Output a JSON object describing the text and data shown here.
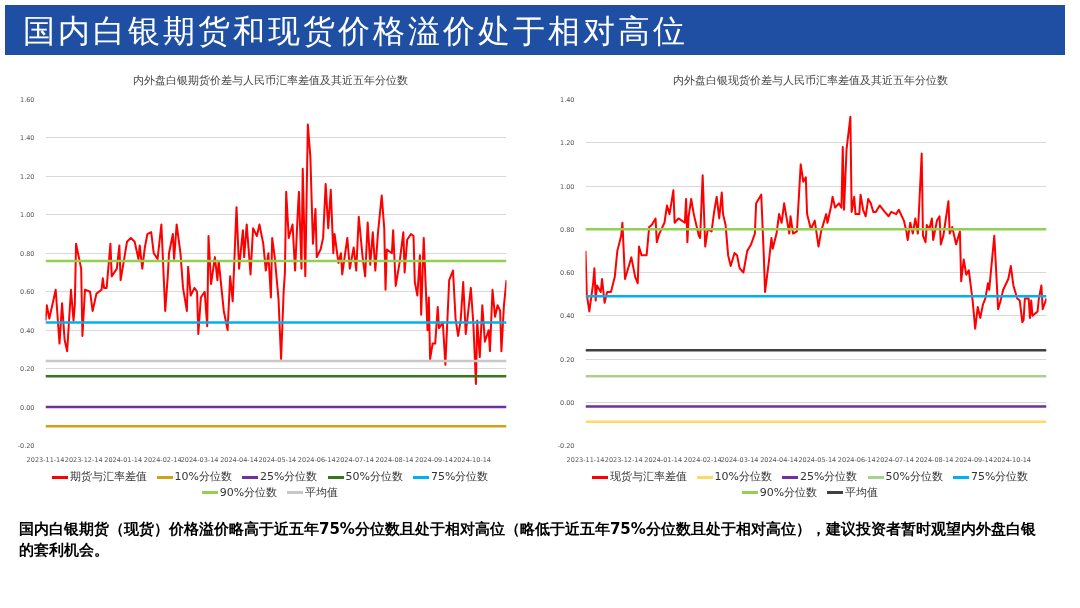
{
  "chart_data": [
    {
      "type": "other",
      "title": "国内白银期货和现货价格溢价处于相对高位",
      "annotations": [
        "国内白银期货（现货）价格溢价略高于近五年75%分位数且处于相对高位（略低于近五年75%分位数且处于相对高位），建议投资者暂时观望内外盘白银的套利机会。"
      ]
    },
    {
      "type": "line",
      "title": "内外盘白银期货价差与人民币汇率差值及其近五年分位数",
      "grid": "y",
      "legend": "bottom",
      "line_style": "solid",
      "xlim": [
        "2023-11-14",
        "2024-11-10"
      ],
      "xticks": [
        "2023-11-14",
        "2023-12-14",
        "2024-01-14",
        "2024-02-14",
        "2024-03-14",
        "2024-04-14",
        "2024-05-14",
        "2024-06-14",
        "2024-07-14",
        "2024-08-14",
        "2024-09-14",
        "2024-10-14"
      ],
      "ylim": [
        -0.2,
        1.6
      ],
      "yticks": [
        {
          "value": -0.2,
          "label": "-0.20"
        },
        {
          "value": 0,
          "label": "0.00"
        },
        {
          "value": 0.2,
          "label": "0.20"
        },
        {
          "value": 0.4,
          "label": "0.40"
        },
        {
          "value": 0.6,
          "label": "0.60"
        },
        {
          "value": 0.8,
          "label": "0.80"
        },
        {
          "value": 1.0,
          "label": "1.00"
        },
        {
          "value": 1.2,
          "label": "1.20"
        },
        {
          "value": 1.4,
          "label": "1.40"
        },
        {
          "value": 1.6,
          "label": "1.60"
        }
      ],
      "series": [
        {
          "name": "期货与汇率差值",
          "color": "#ff0000",
          "x": [
            "2023-11-14",
            "2023-11-15",
            "2023-11-17",
            "2023-11-20",
            "2023-11-22",
            "2023-11-25",
            "2023-11-27",
            "2023-11-29",
            "2023-12-01",
            "2023-12-04",
            "2023-12-06",
            "2023-12-07",
            "2023-12-08",
            "2023-12-12",
            "2023-12-13",
            "2023-12-15",
            "2023-12-19",
            "2023-12-21",
            "2023-12-24",
            "2023-12-28",
            "2023-12-29",
            "2023-12-30",
            "2024-01-01",
            "2024-01-04",
            "2024-01-05",
            "2024-01-09",
            "2024-01-11",
            "2024-01-12",
            "2024-01-15",
            "2024-01-17",
            "2024-01-20",
            "2024-01-23",
            "2024-01-26",
            "2024-01-27",
            "2024-01-29",
            "2024-01-31",
            "2024-02-02",
            "2024-02-05",
            "2024-02-07",
            "2024-02-10",
            "2024-02-13",
            "2024-02-16",
            "2024-02-18",
            "2024-02-19",
            "2024-02-22",
            "2024-02-23",
            "2024-02-25",
            "2024-02-28",
            "2024-03-01",
            "2024-03-04",
            "2024-03-05",
            "2024-03-07",
            "2024-03-10",
            "2024-03-12",
            "2024-03-13",
            "2024-03-15",
            "2024-03-18",
            "2024-03-20",
            "2024-03-21",
            "2024-03-23",
            "2024-03-26",
            "2024-03-28",
            "2024-03-29",
            "2024-04-02",
            "2024-04-05",
            "2024-04-07",
            "2024-04-09",
            "2024-04-12",
            "2024-04-14",
            "2024-04-17",
            "2024-04-18",
            "2024-04-20",
            "2024-04-23",
            "2024-04-25",
            "2024-04-28",
            "2024-04-30",
            "2024-05-03",
            "2024-05-05",
            "2024-05-07",
            "2024-05-09",
            "2024-05-10",
            "2024-05-12",
            "2024-05-15",
            "2024-05-16",
            "2024-05-17",
            "2024-05-19",
            "2024-05-20",
            "2024-05-21",
            "2024-05-23",
            "2024-05-26",
            "2024-05-28",
            "2024-05-30",
            "2024-05-31",
            "2024-06-02",
            "2024-06-03",
            "2024-06-05",
            "2024-06-07",
            "2024-06-09",
            "2024-06-11",
            "2024-06-13",
            "2024-06-14",
            "2024-06-17",
            "2024-06-19",
            "2024-06-21",
            "2024-06-23",
            "2024-06-25",
            "2024-06-27",
            "2024-06-28",
            "2024-07-01",
            "2024-07-03",
            "2024-07-04",
            "2024-07-08",
            "2024-07-10",
            "2024-07-13",
            "2024-07-15",
            "2024-07-17",
            "2024-07-20",
            "2024-07-22",
            "2024-07-24",
            "2024-07-26",
            "2024-07-28",
            "2024-07-30",
            "2024-08-01",
            "2024-08-04",
            "2024-08-06",
            "2024-08-07",
            "2024-08-08",
            "2024-08-12",
            "2024-08-13",
            "2024-08-15",
            "2024-08-18",
            "2024-08-21",
            "2024-08-22",
            "2024-08-24",
            "2024-08-27",
            "2024-08-29",
            "2024-08-30",
            "2024-09-01",
            "2024-09-03",
            "2024-09-04",
            "2024-09-06",
            "2024-09-08",
            "2024-09-09",
            "2024-09-10",
            "2024-09-11",
            "2024-09-13",
            "2024-09-15",
            "2024-09-17",
            "2024-09-18",
            "2024-09-21",
            "2024-09-23",
            "2024-09-26",
            "2024-09-29",
            "2024-10-01",
            "2024-10-03",
            "2024-10-05",
            "2024-10-07",
            "2024-10-09",
            "2024-10-13",
            "2024-10-15",
            "2024-10-17",
            "2024-10-18",
            "2024-10-20",
            "2024-10-22",
            "2024-10-24",
            "2024-10-27",
            "2024-10-28",
            "2024-10-30",
            "2024-11-01",
            "2024-11-03",
            "2024-11-05",
            "2024-11-06",
            "2024-11-08",
            "2024-11-10"
          ],
          "values": [
            0.45,
            0.53,
            0.46,
            0.55,
            0.61,
            0.33,
            0.54,
            0.35,
            0.29,
            0.61,
            0.45,
            0.53,
            0.85,
            0.72,
            0.37,
            0.61,
            0.6,
            0.5,
            0.59,
            0.61,
            0.67,
            0.62,
            0.62,
            0.85,
            0.68,
            0.72,
            0.84,
            0.66,
            0.78,
            0.86,
            0.88,
            0.86,
            0.77,
            0.84,
            0.72,
            0.83,
            0.9,
            0.91,
            0.8,
            0.77,
            0.95,
            0.5,
            0.68,
            0.8,
            0.9,
            0.77,
            0.95,
            0.8,
            0.62,
            0.5,
            0.73,
            0.58,
            0.62,
            0.6,
            0.38,
            0.57,
            0.6,
            0.42,
            0.89,
            0.64,
            0.78,
            0.66,
            0.76,
            0.5,
            0.4,
            0.68,
            0.55,
            1.04,
            0.72,
            0.92,
            0.78,
            0.95,
            0.69,
            0.93,
            0.89,
            0.95,
            0.85,
            0.71,
            0.8,
            0.57,
            0.88,
            0.78,
            0.56,
            0.4,
            0.25,
            0.6,
            0.7,
            1.12,
            0.88,
            0.95,
            0.71,
            1.0,
            1.12,
            0.72,
            1.24,
            0.68,
            1.47,
            1.3,
            0.85,
            1.03,
            0.78,
            0.82,
            0.88,
            1.16,
            0.93,
            1.13,
            0.8,
            0.9,
            0.75,
            0.8,
            0.69,
            0.88,
            0.72,
            0.83,
            0.71,
            0.99,
            0.78,
            0.68,
            0.96,
            0.74,
            0.91,
            0.71,
            0.9,
            1.1,
            0.93,
            0.61,
            0.82,
            0.8,
            0.92,
            0.63,
            0.75,
            0.91,
            0.7,
            0.87,
            0.9,
            0.89,
            0.65,
            0.58,
            0.79,
            0.48,
            0.88,
            0.56,
            0.4,
            0.57,
            0.25,
            0.33,
            0.33,
            0.52,
            0.41,
            0.44,
            0.22,
            0.66,
            0.71,
            0.46,
            0.37,
            0.45,
            0.65,
            0.38,
            0.62,
            0.43,
            0.12,
            0.45,
            0.26,
            0.53,
            0.34,
            0.4,
            0.29,
            0.61,
            0.47,
            0.53,
            0.5,
            0.29,
            0.53,
            0.66
          ]
        },
        {
          "name": "10%分位数",
          "color": "#d4a017",
          "x": [
            "2023-11-14",
            "2024-11-10"
          ],
          "values": [
            -0.1,
            -0.1
          ]
        },
        {
          "name": "25%分位数",
          "color": "#7030a0",
          "x": [
            "2023-11-14",
            "2024-11-10"
          ],
          "values": [
            0.0,
            0.0
          ]
        },
        {
          "name": "50%分位数",
          "color": "#38761d",
          "x": [
            "2023-11-14",
            "2024-11-10"
          ],
          "values": [
            0.16,
            0.16
          ]
        },
        {
          "name": "75%分位数",
          "color": "#00b0f0",
          "x": [
            "2023-11-14",
            "2024-11-10"
          ],
          "values": [
            0.44,
            0.44
          ]
        },
        {
          "name": "90%分位数",
          "color": "#92d050",
          "x": [
            "2023-11-14",
            "2024-11-10"
          ],
          "values": [
            0.76,
            0.76
          ]
        },
        {
          "name": "平均值",
          "color": "#c8c8c8",
          "x": [
            "2023-11-14",
            "2024-11-10"
          ],
          "values": [
            0.24,
            0.24
          ]
        }
      ]
    },
    {
      "type": "line",
      "title": "内外盘白银现货价差与人民币汇率差值及其近五年分位数",
      "grid": "y",
      "legend": "bottom",
      "line_style": "solid",
      "xlim": [
        "2023-11-14",
        "2024-11-10"
      ],
      "xticks": [
        "2023-11-14",
        "2023-12-14",
        "2024-01-14",
        "2024-02-14",
        "2024-03-14",
        "2024-04-14",
        "2024-05-14",
        "2024-06-14",
        "2024-07-14",
        "2024-08-14",
        "2024-09-14",
        "2024-10-14"
      ],
      "ylim": [
        -0.2,
        1.4
      ],
      "yticks": [
        {
          "value": -0.2,
          "label": "-0.20"
        },
        {
          "value": 0,
          "label": "0.00"
        },
        {
          "value": 0.2,
          "label": "0.20"
        },
        {
          "value": 0.4,
          "label": "0.40"
        },
        {
          "value": 0.6,
          "label": "0.60"
        },
        {
          "value": 0.8,
          "label": "0.80"
        },
        {
          "value": 1.0,
          "label": "1.00"
        },
        {
          "value": 1.2,
          "label": "1.20"
        },
        {
          "value": 1.4,
          "label": "1.40"
        }
      ],
      "series": [
        {
          "name": "现货与汇率差值",
          "color": "#ff0000",
          "x": [
            "2023-11-14",
            "2023-11-15",
            "2023-11-17",
            "2023-11-20",
            "2023-11-21",
            "2023-11-22",
            "2023-11-23",
            "2023-11-26",
            "2023-11-27",
            "2023-11-29",
            "2023-12-01",
            "2023-12-04",
            "2023-12-07",
            "2023-12-09",
            "2023-12-12",
            "2023-12-13",
            "2023-12-15",
            "2023-12-19",
            "2023-12-20",
            "2023-12-23",
            "2023-12-25",
            "2023-12-26",
            "2023-12-28",
            "2024-01-01",
            "2024-01-03",
            "2024-01-05",
            "2024-01-08",
            "2024-01-09",
            "2024-01-11",
            "2024-01-15",
            "2024-01-17",
            "2024-01-19",
            "2024-01-22",
            "2024-01-23",
            "2024-01-26",
            "2024-01-31",
            "2024-02-01",
            "2024-02-02",
            "2024-02-03",
            "2024-02-05",
            "2024-02-07",
            "2024-02-11",
            "2024-02-12",
            "2024-02-14",
            "2024-02-16",
            "2024-02-18",
            "2024-02-21",
            "2024-02-23",
            "2024-02-25",
            "2024-02-27",
            "2024-02-29",
            "2024-03-01",
            "2024-03-03",
            "2024-03-05",
            "2024-03-07",
            "2024-03-10",
            "2024-03-12",
            "2024-03-14",
            "2024-03-17",
            "2024-03-20",
            "2024-03-23",
            "2024-03-26",
            "2024-03-27",
            "2024-03-31",
            "2024-04-02",
            "2024-04-03",
            "2024-04-06",
            "2024-04-08",
            "2024-04-09",
            "2024-04-12",
            "2024-04-14",
            "2024-04-16",
            "2024-04-18",
            "2024-04-22",
            "2024-04-23",
            "2024-04-25",
            "2024-04-28",
            "2024-05-01",
            "2024-05-03",
            "2024-05-05",
            "2024-05-06",
            "2024-05-09",
            "2024-05-12",
            "2024-05-15",
            "2024-05-17",
            "2024-05-21",
            "2024-05-22",
            "2024-05-25",
            "2024-05-26",
            "2024-05-28",
            "2024-05-31",
            "2024-06-02",
            "2024-06-03",
            "2024-06-04",
            "2024-06-06",
            "2024-06-09",
            "2024-06-10",
            "2024-06-12",
            "2024-06-13",
            "2024-06-16",
            "2024-06-17",
            "2024-06-19",
            "2024-06-21",
            "2024-06-23",
            "2024-06-25",
            "2024-06-27",
            "2024-06-29",
            "2024-07-02",
            "2024-07-06",
            "2024-07-09",
            "2024-07-11",
            "2024-07-15",
            "2024-07-17",
            "2024-07-21",
            "2024-07-23",
            "2024-07-24",
            "2024-07-26",
            "2024-07-28",
            "2024-07-30",
            "2024-08-01",
            "2024-08-04",
            "2024-08-05",
            "2024-08-07",
            "2024-08-08",
            "2024-08-10",
            "2024-08-12",
            "2024-08-13",
            "2024-08-16",
            "2024-08-18",
            "2024-08-19",
            "2024-08-21",
            "2024-08-25",
            "2024-08-26",
            "2024-08-28",
            "2024-08-31",
            "2024-09-03",
            "2024-09-04",
            "2024-09-06",
            "2024-09-08",
            "2024-09-10",
            "2024-09-13",
            "2024-09-15",
            "2024-09-17",
            "2024-09-19",
            "2024-09-21",
            "2024-09-23",
            "2024-09-25",
            "2024-09-26",
            "2024-09-30",
            "2024-10-01",
            "2024-10-03",
            "2024-10-05",
            "2024-10-07",
            "2024-10-11",
            "2024-10-13",
            "2024-10-15",
            "2024-10-18",
            "2024-10-20",
            "2024-10-22",
            "2024-10-23",
            "2024-10-24",
            "2024-10-27",
            "2024-10-28",
            "2024-10-29",
            "2024-10-30",
            "2024-11-03",
            "2024-11-04",
            "2024-11-06",
            "2024-11-07",
            "2024-11-10"
          ],
          "values": [
            0.7,
            0.5,
            0.42,
            0.55,
            0.62,
            0.47,
            0.54,
            0.51,
            0.57,
            0.46,
            0.51,
            0.51,
            0.58,
            0.7,
            0.77,
            0.83,
            0.57,
            0.65,
            0.67,
            0.58,
            0.55,
            0.72,
            0.68,
            0.68,
            0.81,
            0.82,
            0.85,
            0.74,
            0.78,
            0.83,
            0.91,
            0.87,
            0.98,
            0.83,
            0.85,
            0.83,
            0.94,
            0.74,
            0.86,
            0.94,
            0.87,
            0.77,
            0.76,
            1.05,
            0.72,
            0.8,
            0.79,
            0.88,
            0.95,
            0.85,
            0.97,
            0.87,
            0.82,
            0.68,
            0.63,
            0.69,
            0.68,
            0.62,
            0.6,
            0.7,
            0.73,
            0.78,
            0.92,
            0.96,
            0.68,
            0.51,
            0.65,
            0.76,
            0.71,
            0.78,
            0.87,
            0.83,
            0.92,
            0.78,
            0.86,
            0.78,
            0.79,
            1.1,
            1.02,
            1.04,
            0.87,
            0.8,
            0.84,
            0.72,
            0.79,
            0.87,
            0.83,
            0.91,
            0.95,
            0.9,
            0.92,
            0.9,
            1.18,
            0.89,
            1.17,
            1.32,
            0.88,
            0.95,
            0.87,
            0.87,
            0.96,
            0.89,
            0.86,
            0.94,
            0.92,
            0.88,
            0.88,
            0.91,
            0.88,
            0.86,
            0.88,
            0.87,
            0.89,
            0.84,
            0.79,
            0.75,
            0.83,
            0.78,
            0.85,
            0.78,
            1.15,
            0.77,
            0.74,
            0.82,
            0.8,
            0.85,
            0.75,
            0.84,
            0.86,
            0.73,
            0.77,
            0.93,
            0.78,
            0.81,
            0.73,
            0.79,
            0.56,
            0.66,
            0.59,
            0.61,
            0.47,
            0.34,
            0.44,
            0.39,
            0.45,
            0.48,
            0.55,
            0.52,
            0.77,
            0.66,
            0.43,
            0.47,
            0.52,
            0.57,
            0.63,
            0.54,
            0.48,
            0.47,
            0.37,
            0.38,
            0.48,
            0.48,
            0.39,
            0.47,
            0.4,
            0.42,
            0.48,
            0.54,
            0.43,
            0.48
          ]
        },
        {
          "name": "10%分位数",
          "color": "#ffd966",
          "x": [
            "2023-11-14",
            "2024-11-10"
          ],
          "values": [
            -0.09,
            -0.09
          ]
        },
        {
          "name": "25%分位数",
          "color": "#7030a0",
          "x": [
            "2023-11-14",
            "2024-11-10"
          ],
          "values": [
            -0.02,
            -0.02
          ]
        },
        {
          "name": "50%分位数",
          "color": "#a9d18e",
          "x": [
            "2023-11-14",
            "2024-11-10"
          ],
          "values": [
            0.12,
            0.12
          ]
        },
        {
          "name": "75%分位数",
          "color": "#00b0f0",
          "x": [
            "2023-11-14",
            "2024-11-10"
          ],
          "values": [
            0.49,
            0.49
          ]
        },
        {
          "name": "90%分位数",
          "color": "#92d050",
          "x": [
            "2023-11-14",
            "2024-11-10"
          ],
          "values": [
            0.8,
            0.8
          ]
        },
        {
          "name": "平均值",
          "color": "#404040",
          "x": [
            "2023-11-14",
            "2024-11-10"
          ],
          "values": [
            0.24,
            0.24
          ]
        }
      ]
    }
  ]
}
